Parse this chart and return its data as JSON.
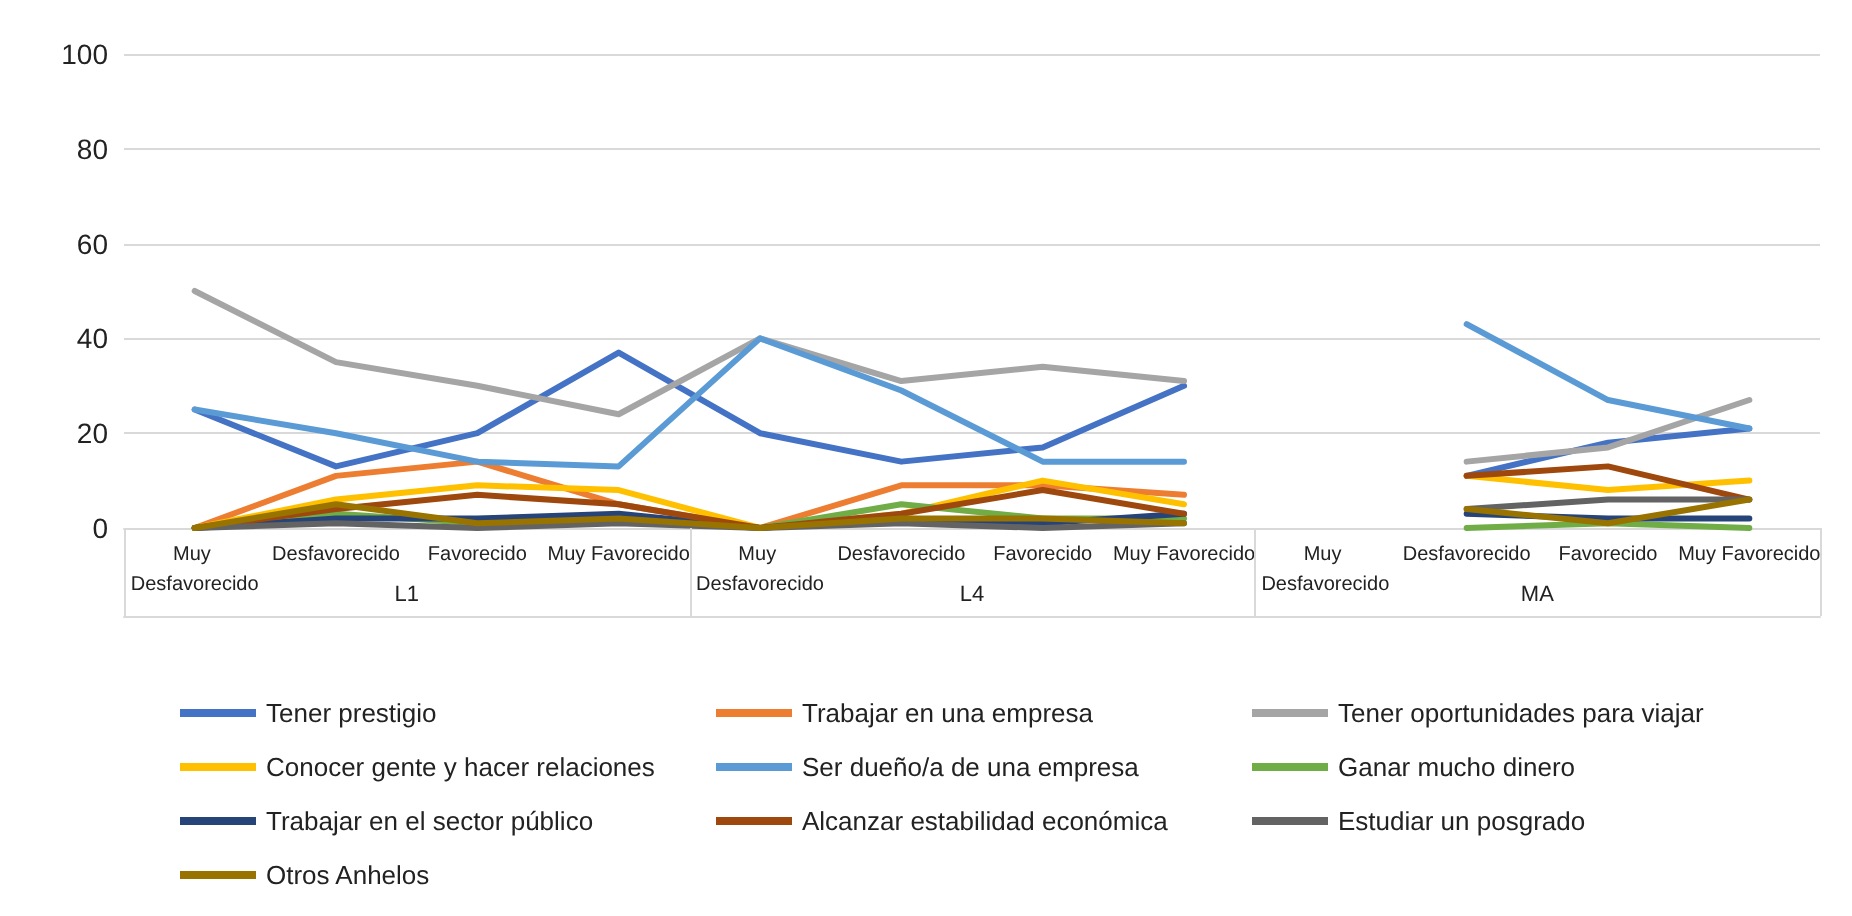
{
  "chart_data": {
    "type": "line",
    "categories": [
      "Muy Desfavorecido",
      "Desfavorecido",
      "Favorecido",
      "Muy Favorecido",
      "Muy Desfavorecido",
      "Desfavorecido",
      "Favorecido",
      "Muy Favorecido",
      "Muy Desfavorecido",
      "Desfavorecido",
      "Favorecido",
      "Muy Favorecido"
    ],
    "annotations": [
      "L1",
      "L4",
      "MA"
    ],
    "series": [
      {
        "name": "Tener prestigio",
        "color": "#4472c4",
        "values": [
          25,
          13,
          20,
          37,
          20,
          14,
          17,
          30,
          null,
          11,
          18,
          21
        ]
      },
      {
        "name": "Trabajar en una empresa",
        "color": "#ed7d31",
        "values": [
          0,
          11,
          14,
          5,
          0,
          9,
          9,
          7,
          null,
          null,
          null,
          null
        ]
      },
      {
        "name": "Tener oportunidades para viajar",
        "color": "#a5a5a5",
        "values": [
          50,
          35,
          30,
          24,
          40,
          31,
          34,
          31,
          null,
          14,
          17,
          27
        ]
      },
      {
        "name": "Conocer gente y hacer relaciones",
        "color": "#ffc000",
        "values": [
          0,
          6,
          9,
          8,
          0,
          3,
          10,
          5,
          null,
          11,
          8,
          10
        ]
      },
      {
        "name": "Ser dueño/a de una empresa",
        "color": "#5b9bd5",
        "values": [
          25,
          20,
          14,
          13,
          40,
          29,
          14,
          14,
          null,
          43,
          27,
          21
        ]
      },
      {
        "name": "Ganar mucho dinero",
        "color": "#70ad47",
        "values": [
          0,
          3,
          1,
          2,
          0,
          5,
          2,
          2,
          null,
          0,
          1,
          0
        ]
      },
      {
        "name": "Trabajar en el sector público",
        "color": "#264478",
        "values": [
          0,
          2,
          2,
          3,
          0,
          2,
          1,
          3,
          null,
          3,
          2,
          2
        ]
      },
      {
        "name": "Alcanzar estabilidad económica",
        "color": "#9e480e",
        "values": [
          0,
          4,
          7,
          5,
          0,
          3,
          8,
          3,
          null,
          11,
          13,
          6
        ]
      },
      {
        "name": "Estudiar un posgrado",
        "color": "#636363",
        "values": [
          0,
          1,
          0,
          1,
          0,
          1,
          0,
          1,
          null,
          4,
          6,
          6
        ]
      },
      {
        "name": "Otros Anhelos",
        "color": "#997300",
        "values": [
          0,
          5,
          1,
          2,
          0,
          2,
          2,
          1,
          null,
          4,
          1,
          6
        ]
      }
    ],
    "ylim": [
      0,
      100
    ],
    "yticks": [
      0,
      20,
      40,
      60,
      80,
      100
    ],
    "grid": "y",
    "legend": "bottom",
    "marker": "none",
    "line_style": "solid"
  }
}
